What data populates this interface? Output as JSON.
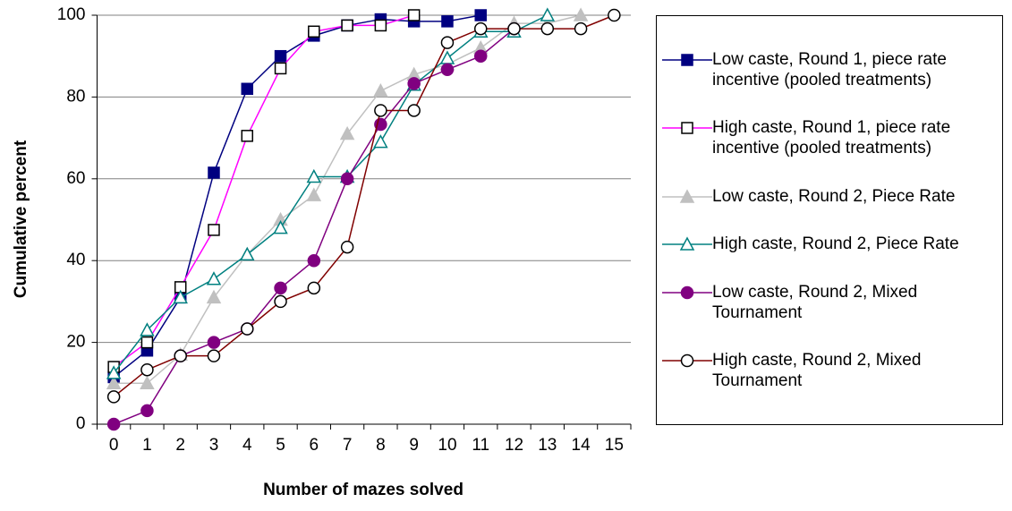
{
  "chart_data": {
    "type": "line",
    "xlabel": "Number of mazes solved",
    "ylabel": "Cumulative percent",
    "categories": [
      "0",
      "1",
      "2",
      "3",
      "4",
      "5",
      "6",
      "7",
      "8",
      "9",
      "10",
      "11",
      "12",
      "13",
      "14",
      "15"
    ],
    "ylim": [
      0,
      100
    ],
    "yticks": [
      0,
      20,
      40,
      60,
      80,
      100
    ],
    "grid": true,
    "legend": "right",
    "series": [
      {
        "name": "Low caste, Round 1, piece rate incentive (pooled treatments)",
        "color": "#000080",
        "marker": "square",
        "filled": true,
        "marker_edge": "#000080",
        "values": [
          11.5,
          18,
          31,
          61.5,
          82,
          90,
          95,
          97.5,
          99,
          98.5,
          98.5,
          100,
          null,
          null,
          null,
          null
        ]
      },
      {
        "name": "High caste, Round 1, piece rate incentive (pooled treatments)",
        "color": "#ff00ff",
        "marker": "square",
        "filled": false,
        "marker_edge": "#000000",
        "values": [
          14,
          20,
          33.5,
          47.5,
          70.5,
          87,
          96,
          97.5,
          97.5,
          100,
          null,
          null,
          null,
          null,
          null,
          null
        ]
      },
      {
        "name": "Low caste, Round 2, Piece Rate",
        "color": "#c0c0c0",
        "marker": "triangle",
        "filled": true,
        "marker_edge": "#c0c0c0",
        "values": [
          10,
          10,
          17,
          31,
          41.5,
          50,
          56,
          71,
          81.5,
          85.5,
          88,
          92,
          98,
          98,
          100,
          null
        ]
      },
      {
        "name": "High caste, Round 2, Piece Rate",
        "color": "#008080",
        "marker": "triangle",
        "filled": false,
        "marker_edge": "#008080",
        "values": [
          12.5,
          23,
          31,
          35.5,
          41.5,
          48,
          60.5,
          60.5,
          69,
          83,
          89.5,
          96,
          96,
          100,
          null,
          null
        ]
      },
      {
        "name": "Low caste, Round 2, Mixed Tournament",
        "color": "#800080",
        "marker": "circle",
        "filled": true,
        "marker_edge": "#800080",
        "values": [
          0,
          3.3,
          16.7,
          20,
          23.3,
          33.3,
          40,
          60,
          73.3,
          83.3,
          86.7,
          90,
          96.7,
          null,
          null,
          null
        ]
      },
      {
        "name": "High caste, Round 2, Mixed Tournament",
        "color": "#800000",
        "marker": "circle",
        "filled": false,
        "marker_edge": "#000000",
        "values": [
          6.7,
          13.3,
          16.7,
          16.7,
          23.3,
          30,
          33.3,
          43.3,
          76.7,
          76.7,
          93.3,
          96.7,
          96.7,
          96.7,
          96.7,
          100
        ]
      }
    ]
  }
}
